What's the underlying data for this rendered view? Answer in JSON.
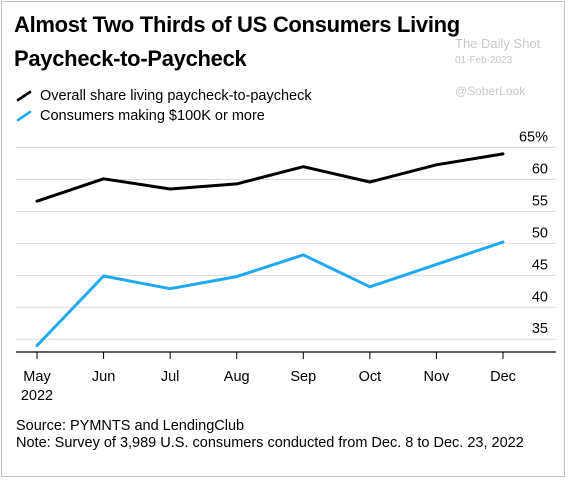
{
  "header": {
    "title": "Almost Two Thirds of US Consumers Living Paycheck-to-Paycheck"
  },
  "watermark": {
    "line1": "The Daily Shot",
    "line2": "01-Feb-2023",
    "line3": "@SoberLook"
  },
  "legend": {
    "items": [
      {
        "label": "Overall share living paycheck-to-paycheck",
        "color": "#000000"
      },
      {
        "label": "Consumers making $100K or more",
        "color": "#1eaaf1"
      }
    ]
  },
  "chart_data": {
    "type": "line",
    "x": [
      "May",
      "Jun",
      "Jul",
      "Aug",
      "Sep",
      "Oct",
      "Nov",
      "Dec"
    ],
    "x_year_label": "2022",
    "series": [
      {
        "name": "Overall share living paycheck-to-paycheck",
        "color": "#000000",
        "values": [
          56.6,
          60.1,
          58.5,
          59.3,
          62.0,
          59.6,
          62.3,
          64.0
        ]
      },
      {
        "name": "Consumers making $100K or more",
        "color": "#1eaaf1",
        "values": [
          34.0,
          44.9,
          42.9,
          44.8,
          48.2,
          43.2,
          46.7,
          50.2
        ]
      }
    ],
    "y_ticks": [
      {
        "value": 65,
        "label": "65%"
      },
      {
        "value": 60,
        "label": "60"
      },
      {
        "value": 55,
        "label": "55"
      },
      {
        "value": 50,
        "label": "50"
      },
      {
        "value": 45,
        "label": "45"
      },
      {
        "value": 40,
        "label": "40"
      },
      {
        "value": 35,
        "label": "35"
      }
    ],
    "ylim": [
      33,
      65
    ],
    "grid": true,
    "legend_position": "top-left"
  },
  "footer": {
    "source": "Source: PYMNTS and LendingClub",
    "note": "Note: Survey of 3,989 U.S. consumers conducted from Dec. 8 to Dec. 23, 2022"
  }
}
